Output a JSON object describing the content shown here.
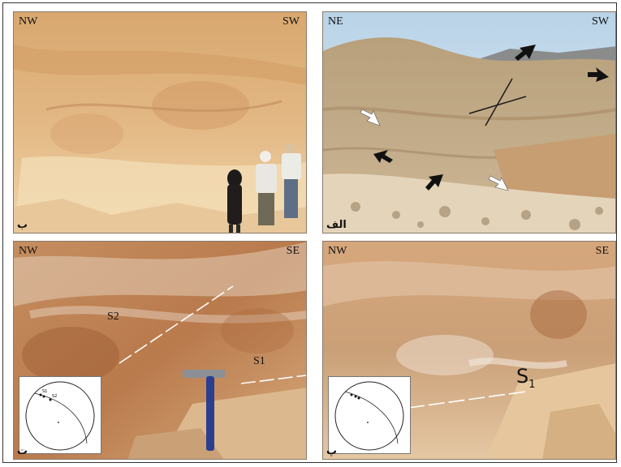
{
  "panels": {
    "top_left": {
      "dir_left": "NW",
      "dir_right": "SW",
      "label": "ب"
    },
    "top_right": {
      "dir_left": "NE",
      "dir_right": "SW",
      "label": "الف"
    },
    "bottom_left": {
      "dir_left": "NW",
      "dir_right": "SE",
      "label": "ت",
      "s2": "S2",
      "s1": "S1",
      "inset": {
        "s1": "S1",
        "s2": "S2"
      }
    },
    "bottom_right": {
      "dir_left": "NW",
      "dir_right": "SE",
      "label": "پ",
      "s1": "S",
      "s1_sub": "1"
    }
  }
}
